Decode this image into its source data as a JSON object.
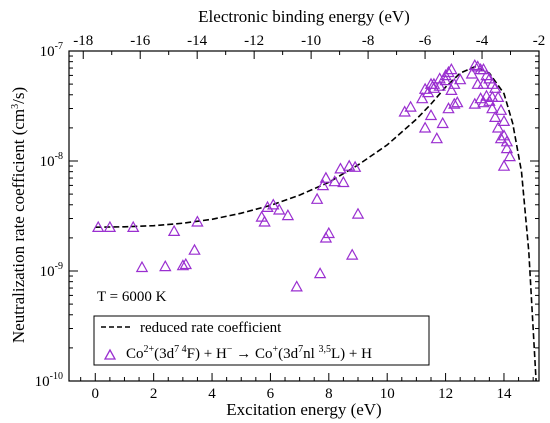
{
  "chart_data": {
    "type": "scatter",
    "xlabel": "Excitation energy (eV)",
    "x2label": "Electronic binding energy (eV)",
    "ylabel_text": "Neutralization rate coefficient (cm",
    "ylabel_sup": "3",
    "ylabel_tail": "/s)",
    "xlim": [
      -0.9,
      15.2
    ],
    "x2lim": [
      -18.5,
      -2.0
    ],
    "ylim": [
      1e-10,
      1e-07
    ],
    "yscale": "log",
    "x_ticks": [
      "0",
      "2",
      "4",
      "6",
      "8",
      "10",
      "12",
      "14"
    ],
    "x2_ticks": [
      "-18",
      "-16",
      "-14",
      "-12",
      "-10",
      "-8",
      "-6",
      "-4",
      "-2"
    ],
    "y_ticks": [
      {
        "base": "10",
        "exp": "-10"
      },
      {
        "base": "10",
        "exp": "-9"
      },
      {
        "base": "10",
        "exp": "-8"
      },
      {
        "base": "10",
        "exp": "-7"
      }
    ],
    "annotation": "T = 6000 K",
    "legend": {
      "line_label": "reduced rate coefficient",
      "marker_label": {
        "t1": "Co",
        "s1": "2+",
        "t2": "(3d",
        "s2": "7 4",
        "t3": "F) + H",
        "s3": "−",
        "t4": " → Co",
        "s4": "+",
        "t5": "(3d",
        "s5": "7",
        "t6": "nl ",
        "s6": "3,5",
        "t7": "L) + H"
      }
    },
    "colors": {
      "markers": "#9a2fd0",
      "curve": "#000000"
    },
    "curve": {
      "x": [
        0,
        1,
        2,
        3,
        4,
        5,
        6,
        7,
        8,
        9,
        10,
        11,
        11.5,
        12,
        12.5,
        13,
        13.5,
        14,
        14.3,
        14.6,
        14.85,
        15.1
      ],
      "y": [
        2.5e-09,
        2.52e-09,
        2.58e-09,
        2.72e-09,
        2.95e-09,
        3.35e-09,
        3.95e-09,
        4.9e-09,
        6.4e-09,
        9.2e-09,
        1.4e-08,
        2.4e-08,
        3.3e-08,
        4.7e-08,
        6.3e-08,
        7.2e-08,
        6.3e-08,
        4.1e-08,
        2.2e-08,
        8e-09,
        1.5e-09,
        1e-10
      ]
    },
    "points": {
      "x": [
        0.1,
        0.5,
        1.3,
        1.6,
        2.4,
        2.7,
        3.0,
        3.1,
        3.4,
        3.5,
        5.7,
        5.8,
        5.9,
        6.1,
        6.3,
        6.6,
        6.9,
        7.6,
        7.7,
        7.8,
        7.9,
        7.9,
        8.0,
        8.2,
        8.4,
        8.5,
        8.7,
        8.8,
        8.9,
        9.0,
        10.6,
        10.8,
        11.2,
        11.3,
        11.3,
        11.4,
        11.5,
        11.5,
        11.6,
        11.6,
        11.7,
        11.8,
        11.8,
        11.9,
        12.0,
        12.0,
        12.1,
        12.1,
        12.2,
        12.2,
        12.3,
        12.3,
        12.4,
        12.5,
        12.9,
        13.0,
        13.0,
        13.1,
        13.1,
        13.2,
        13.2,
        13.3,
        13.3,
        13.3,
        13.4,
        13.4,
        13.5,
        13.5,
        13.6,
        13.6,
        13.6,
        13.7,
        13.7,
        13.8,
        13.8,
        13.9,
        13.9,
        14.0,
        14.0,
        14.0,
        14.1,
        14.1,
        14.2
      ],
      "y": [
        2.5e-09,
        2.5e-09,
        2.5e-09,
        1.08e-09,
        1.1e-09,
        2.3e-09,
        1.12e-09,
        1.15e-09,
        1.55e-09,
        2.8e-09,
        3.1e-09,
        2.8e-09,
        3.8e-09,
        4e-09,
        3.6e-09,
        3.2e-09,
        7.2e-10,
        4.5e-09,
        9.5e-10,
        6e-09,
        2e-09,
        7e-09,
        2.2e-09,
        6.5e-09,
        8.5e-09,
        6.4e-09,
        9e-09,
        1.4e-09,
        8.8e-09,
        3.3e-09,
        2.8e-08,
        3.1e-08,
        3.7e-08,
        2e-08,
        4.5e-08,
        4.2e-08,
        2.6e-08,
        5e-08,
        5e-08,
        4.6e-08,
        1.6e-08,
        4.8e-08,
        5.6e-08,
        2.2e-08,
        6e-08,
        5.4e-08,
        6.4e-08,
        3e-08,
        4.4e-08,
        6.8e-08,
        5e-08,
        3.3e-08,
        3.4e-08,
        5.5e-08,
        6.2e-08,
        7.4e-08,
        3.3e-08,
        7.2e-08,
        5e-08,
        6.8e-08,
        3.7e-08,
        6.8e-08,
        5e-08,
        3.4e-08,
        6e-08,
        3.9e-08,
        5.6e-08,
        3.5e-08,
        5e-08,
        3.8e-08,
        3e-08,
        4.6e-08,
        2.5e-08,
        3.8e-08,
        2e-08,
        2.9e-08,
        1.6e-08,
        2.3e-08,
        1.7e-08,
        9e-09,
        1.5e-08,
        1.3e-08,
        1.1e-08
      ]
    }
  }
}
